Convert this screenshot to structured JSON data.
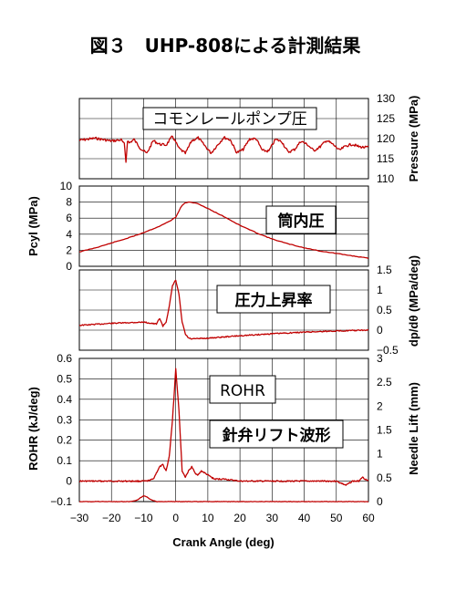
{
  "figure_title": "図３　UHP-808による計測結果",
  "colors": {
    "curve": "#c00000",
    "axis": "#000000"
  },
  "chart_data": [
    {
      "type": "line",
      "title": "コモンレールポンプ圧",
      "ylabel_right": "Pressure (MPa)",
      "ylim": [
        110,
        130
      ],
      "yticks": [
        "130",
        "125",
        "120",
        "115",
        "110"
      ],
      "xlim": [
        -30,
        60
      ],
      "grid": true,
      "x": [
        -30,
        -25,
        -20,
        -17,
        -16,
        -15.5,
        -15,
        -14.5,
        -13,
        -11,
        -9,
        -7,
        -5,
        -3,
        -1,
        1,
        3,
        5,
        7,
        9,
        11,
        13,
        15,
        17,
        19,
        21,
        23,
        25,
        27,
        29,
        31,
        33,
        35,
        37,
        39,
        41,
        43,
        45,
        47,
        49,
        51,
        53,
        55,
        57,
        59,
        60
      ],
      "values": [
        119.6,
        120.1,
        119.4,
        119.7,
        118.6,
        114.2,
        119.6,
        118.9,
        119.8,
        117.6,
        116.3,
        119.5,
        118.6,
        118.4,
        120.6,
        117.6,
        116.3,
        119.5,
        120.2,
        118.3,
        116.4,
        118.4,
        120.3,
        119.7,
        116.5,
        117.3,
        119.9,
        120.0,
        117.0,
        116.9,
        119.8,
        119.3,
        116.6,
        117.3,
        119.4,
        118.5,
        117.0,
        118.0,
        119.6,
        118.5,
        117.1,
        118.2,
        118.6,
        118.0,
        117.8,
        117.9
      ]
    },
    {
      "type": "line",
      "title": "筒内圧",
      "ylabel": "Pcyl (MPa)",
      "ylim": [
        0,
        10
      ],
      "yticks": [
        "10",
        "8",
        "6",
        "4",
        "2",
        "0"
      ],
      "xlim": [
        -30,
        60
      ],
      "grid": true,
      "x": [
        -30,
        -25,
        -20,
        -15,
        -10,
        -5,
        -2,
        0,
        1,
        2,
        3,
        4,
        6,
        8,
        10,
        15,
        20,
        25,
        30,
        35,
        40,
        45,
        50,
        55,
        60
      ],
      "values": [
        1.8,
        2.3,
        2.9,
        3.5,
        4.2,
        5.0,
        5.6,
        6.1,
        6.9,
        7.6,
        7.9,
        8.0,
        7.9,
        7.6,
        7.2,
        6.2,
        5.1,
        4.2,
        3.4,
        2.8,
        2.3,
        1.9,
        1.6,
        1.3,
        1.0
      ]
    },
    {
      "type": "line",
      "title": "圧力上昇率",
      "ylabel_right": "dp/dθ (MPa/deg)",
      "ylim": [
        -0.5,
        1.5
      ],
      "yticks": [
        "1.5",
        "1",
        "0.5",
        "0",
        "−0.5"
      ],
      "xlim": [
        -30,
        60
      ],
      "grid": true,
      "x": [
        -30,
        -20,
        -10,
        -6,
        -5,
        -4,
        -3,
        -2,
        -1,
        0,
        1,
        2,
        3,
        4,
        5,
        10,
        15,
        20,
        30,
        40,
        50,
        60
      ],
      "values": [
        0.12,
        0.17,
        0.2,
        0.15,
        0.3,
        0.1,
        0.2,
        0.6,
        1.1,
        1.25,
        0.9,
        0.2,
        -0.1,
        -0.2,
        -0.22,
        -0.2,
        -0.17,
        -0.14,
        -0.09,
        -0.05,
        -0.02,
        0.0
      ]
    },
    {
      "type": "line",
      "title": "ROHR",
      "ylabel": "ROHR (kJ/deg)",
      "ylim": [
        -0.1,
        0.6
      ],
      "yticks": [
        "0.6",
        "0.5",
        "0.4",
        "0.3",
        "0.2",
        "0.1",
        "0",
        "−0.1"
      ],
      "xlim": [
        -30,
        60
      ],
      "xticks": [
        "−30",
        "−20",
        "−10",
        "0",
        "10",
        "20",
        "30",
        "40",
        "50",
        "60"
      ],
      "xlabel": "Crank Angle (deg)",
      "grid": true,
      "x": [
        -30,
        -20,
        -12,
        -9,
        -7,
        -6,
        -5,
        -4,
        -3,
        -2,
        -1,
        0,
        1,
        2,
        3,
        4,
        5,
        6,
        7,
        8,
        9,
        10,
        12,
        15,
        20,
        30,
        40,
        50,
        53,
        55,
        57,
        58,
        60
      ],
      "values": [
        0.0,
        0.0,
        0.0,
        0.0,
        0.01,
        0.04,
        0.07,
        0.08,
        0.05,
        0.12,
        0.3,
        0.55,
        0.35,
        0.05,
        0.02,
        0.05,
        0.07,
        0.04,
        0.03,
        0.05,
        0.04,
        0.03,
        0.01,
        0.01,
        0.0,
        0.0,
        0.0,
        0.0,
        -0.02,
        0.0,
        0.0,
        0.02,
        0.0
      ]
    },
    {
      "type": "line",
      "title": "針弁リフト波形",
      "ylabel_right": "Needle Lift (mm)",
      "ylim": [
        0,
        3
      ],
      "yticks": [
        "3",
        "2.5",
        "2",
        "1.5",
        "1",
        "0.5",
        "0"
      ],
      "xlim": [
        -30,
        60
      ],
      "x": [
        -30,
        -14,
        -12,
        -11,
        -10,
        -9,
        -8,
        -7,
        -6,
        -5,
        60
      ],
      "values": [
        0,
        0,
        0.03,
        0.08,
        0.12,
        0.1,
        0.05,
        0.02,
        0,
        0,
        0
      ]
    }
  ]
}
